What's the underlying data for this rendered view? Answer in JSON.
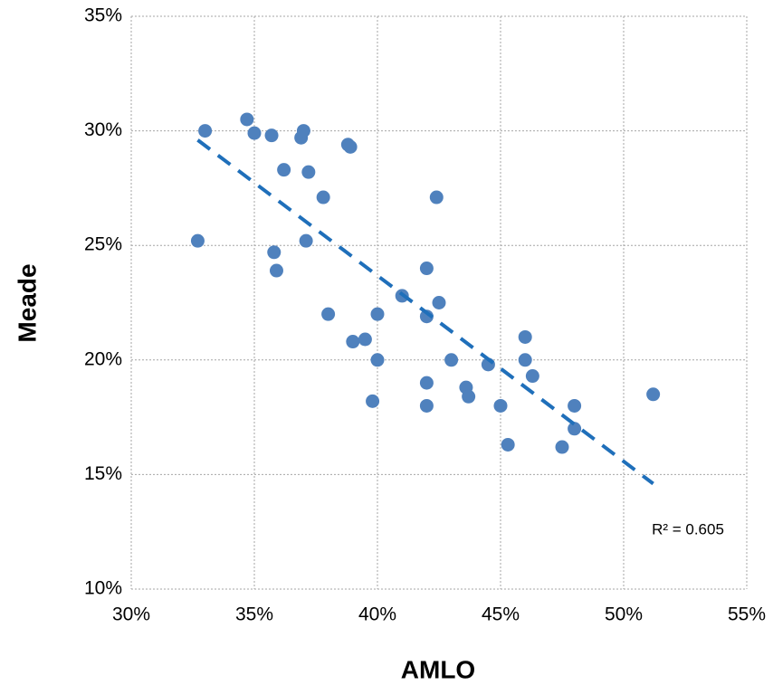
{
  "chart_data": {
    "type": "scatter",
    "x_label": "AMLO",
    "y_label": "Meade",
    "annotation": "R² = 0.605",
    "color": "#4f81bd",
    "trend_color": "#1f6fba",
    "grid": true,
    "xlim": [
      30,
      55
    ],
    "xticks": [
      {
        "value": 30,
        "label": "30%"
      },
      {
        "value": 35,
        "label": "35%"
      },
      {
        "value": 40,
        "label": "40%"
      },
      {
        "value": 45,
        "label": "45%"
      },
      {
        "value": 50,
        "label": "50%"
      },
      {
        "value": 55,
        "label": "55%"
      }
    ],
    "ylim": [
      10,
      35
    ],
    "yticks": [
      {
        "value": 10,
        "label": "10%"
      },
      {
        "value": 15,
        "label": "15%"
      },
      {
        "value": 20,
        "label": "20%"
      },
      {
        "value": 25,
        "label": "25%"
      },
      {
        "value": 30,
        "label": "30%"
      },
      {
        "value": 35,
        "label": "35%"
      }
    ],
    "x": [
      32.7,
      33.0,
      34.7,
      35.0,
      35.7,
      35.8,
      35.9,
      36.2,
      36.9,
      37.0,
      37.2,
      37.1,
      37.8,
      38.0,
      38.8,
      38.9,
      39.0,
      39.5,
      39.8,
      40.0,
      40.0,
      41.0,
      42.0,
      42.0,
      42.0,
      42.0,
      42.4,
      42.5,
      43.0,
      43.6,
      43.7,
      44.5,
      45.0,
      45.3,
      46.0,
      46.0,
      46.3,
      47.5,
      48.0,
      48.0,
      51.2
    ],
    "values": [
      25.2,
      30.0,
      30.5,
      29.9,
      29.8,
      24.7,
      23.9,
      28.3,
      29.7,
      30.0,
      28.2,
      25.2,
      27.1,
      22.0,
      29.4,
      29.3,
      20.8,
      20.9,
      18.2,
      22.0,
      20.0,
      22.8,
      24.0,
      21.9,
      19.0,
      18.0,
      27.1,
      22.5,
      20.0,
      18.8,
      18.4,
      19.8,
      18.0,
      16.3,
      21.0,
      20.0,
      19.3,
      16.2,
      18.0,
      17.0,
      18.5
    ],
    "trendline": {
      "x": [
        32.7,
        51.2
      ],
      "y": [
        29.6,
        14.6
      ]
    }
  }
}
